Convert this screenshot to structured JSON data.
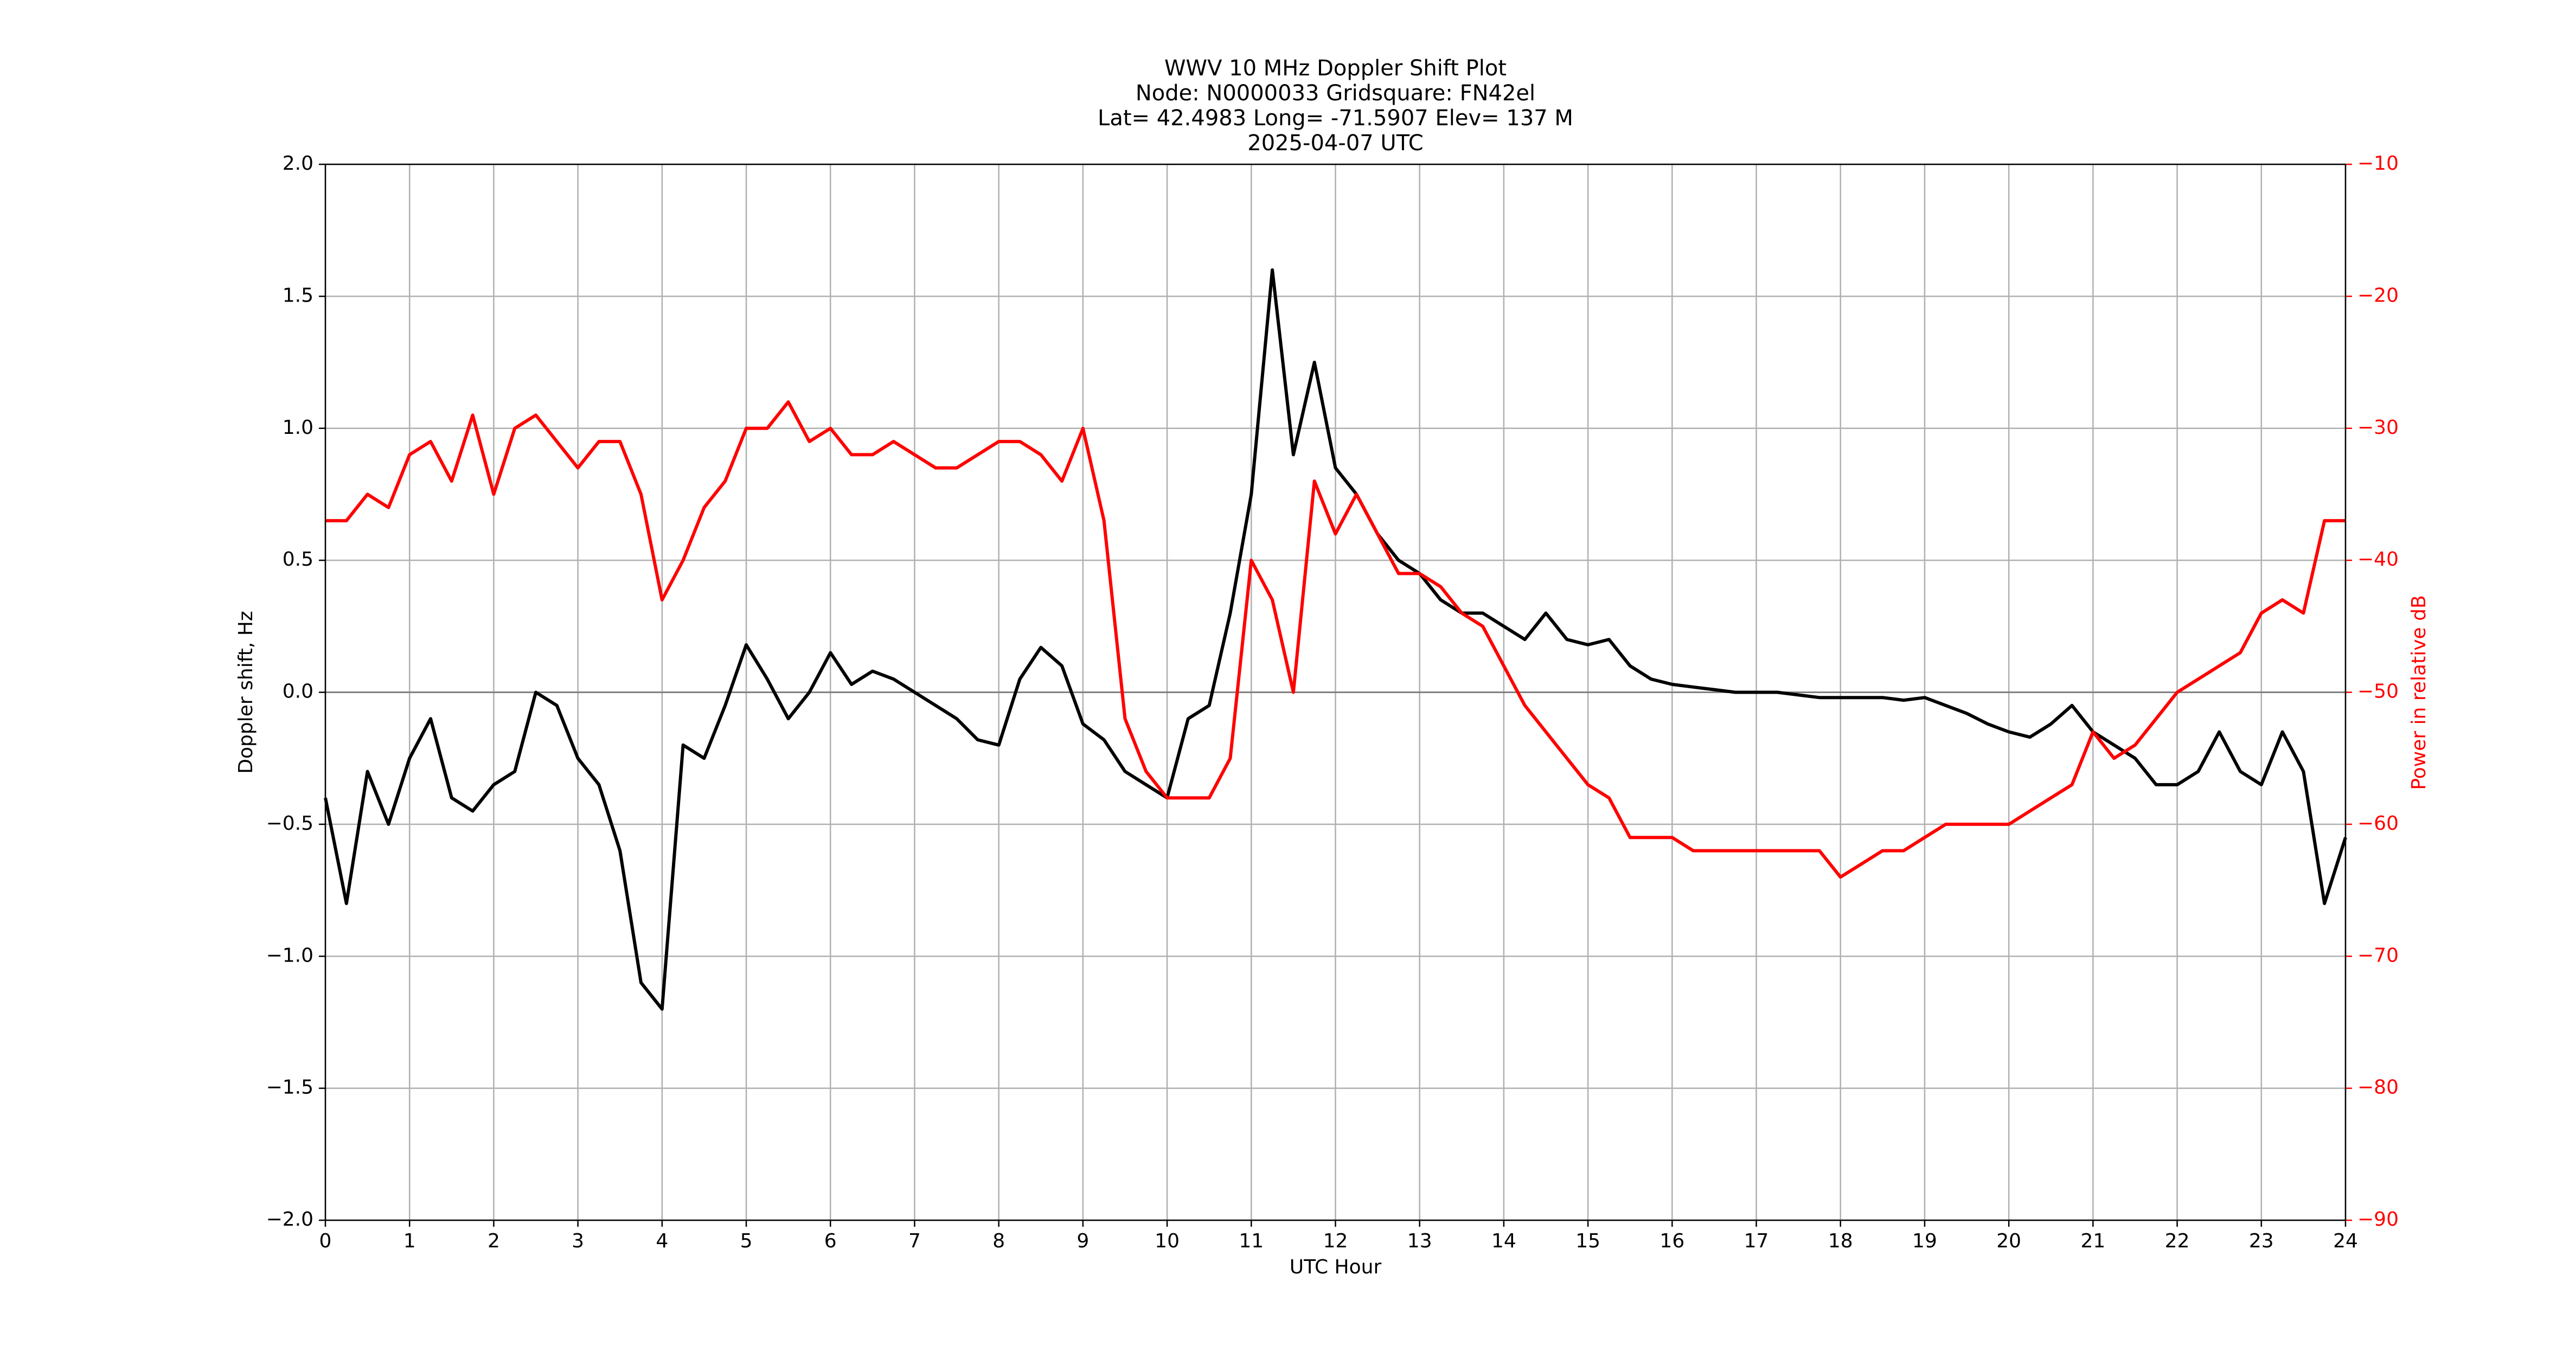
{
  "chart_data": {
    "type": "line",
    "title": [
      "WWV 10 MHz Doppler Shift Plot",
      "Node:  N0000033     Gridsquare:  FN42el",
      "Lat= 42.4983    Long= -71.5907    Elev= 137 M",
      "2025-04-07  UTC"
    ],
    "xlabel": "UTC Hour",
    "ylabel": "Doppler shift, Hz",
    "y2label": "Power in relative dB",
    "xlim": [
      0,
      24
    ],
    "xticks": [
      0,
      1,
      2,
      3,
      4,
      5,
      6,
      7,
      8,
      9,
      10,
      11,
      12,
      13,
      14,
      15,
      16,
      17,
      18,
      19,
      20,
      21,
      22,
      23,
      24
    ],
    "ylim": [
      -2,
      2
    ],
    "yticks": [
      {
        "value": -2,
        "label": "−2.0"
      },
      {
        "value": -1.5,
        "label": "−1.5"
      },
      {
        "value": -1,
        "label": "−1.0"
      },
      {
        "value": -0.5,
        "label": "−0.5"
      },
      {
        "value": 0,
        "label": "0.0"
      },
      {
        "value": 0.5,
        "label": "0.5"
      },
      {
        "value": 1,
        "label": "1.0"
      },
      {
        "value": 1.5,
        "label": "1.5"
      },
      {
        "value": 2,
        "label": "2.0"
      }
    ],
    "y2lim": [
      -90,
      -10
    ],
    "y2ticks": [
      {
        "value": -90,
        "label": "−90"
      },
      {
        "value": -80,
        "label": "−80"
      },
      {
        "value": -70,
        "label": "−70"
      },
      {
        "value": -60,
        "label": "−60"
      },
      {
        "value": -50,
        "label": "−50"
      },
      {
        "value": -40,
        "label": "−40"
      },
      {
        "value": -30,
        "label": "−30"
      },
      {
        "value": -20,
        "label": "−20"
      },
      {
        "value": -10,
        "label": "−10"
      }
    ],
    "grid": true,
    "x": [
      0,
      0.25,
      0.5,
      0.75,
      1,
      1.25,
      1.5,
      1.75,
      2,
      2.25,
      2.5,
      2.75,
      3,
      3.25,
      3.5,
      3.75,
      4,
      4.25,
      4.5,
      4.75,
      5,
      5.25,
      5.5,
      5.75,
      6,
      6.25,
      6.5,
      6.75,
      7,
      7.25,
      7.5,
      7.75,
      8,
      8.25,
      8.5,
      8.75,
      9,
      9.25,
      9.5,
      9.75,
      10,
      10.25,
      10.5,
      10.75,
      11,
      11.25,
      11.5,
      11.75,
      12,
      12.25,
      12.5,
      12.75,
      13,
      13.25,
      13.5,
      13.75,
      14,
      14.25,
      14.5,
      14.75,
      15,
      15.25,
      15.5,
      15.75,
      16,
      16.25,
      16.5,
      16.75,
      17,
      17.25,
      17.5,
      17.75,
      18,
      18.25,
      18.5,
      18.75,
      19,
      19.25,
      19.5,
      19.75,
      20,
      20.25,
      20.5,
      20.75,
      21,
      21.25,
      21.5,
      21.75,
      22,
      22.25,
      22.5,
      22.75,
      23,
      23.25,
      23.5,
      23.75,
      24
    ],
    "series": [
      {
        "color": "#000000",
        "values": [
          -0.4,
          -0.8,
          -0.3,
          -0.5,
          -0.25,
          -0.1,
          -0.4,
          -0.45,
          -0.35,
          -0.3,
          0,
          -0.05,
          -0.25,
          -0.35,
          -0.6,
          -1.1,
          -1.2,
          -0.2,
          -0.25,
          -0.05,
          0.18,
          0.05,
          -0.1,
          0,
          0.15,
          0.03,
          0.08,
          0.05,
          0,
          -0.05,
          -0.1,
          -0.18,
          -0.2,
          0.05,
          0.17,
          0.1,
          -0.12,
          -0.18,
          -0.3,
          -0.35,
          -0.4,
          -0.1,
          -0.05,
          0.3,
          0.75,
          1.6,
          0.9,
          1.25,
          0.85,
          0.75,
          0.6,
          0.5,
          0.45,
          0.35,
          0.3,
          0.3,
          0.25,
          0.2,
          0.3,
          0.2,
          0.18,
          0.2,
          0.1,
          0.05,
          0.03,
          0.02,
          0.01,
          0,
          0,
          0,
          -0.01,
          -0.02,
          -0.02,
          -0.02,
          -0.02,
          -0.03,
          -0.02,
          -0.05,
          -0.08,
          -0.12,
          -0.15,
          -0.17,
          -0.12,
          -0.05,
          -0.15,
          -0.2,
          -0.25,
          -0.35,
          -0.35,
          -0.3,
          -0.15,
          -0.3,
          -0.35,
          -0.15,
          -0.3,
          -0.8,
          -0.55
        ]
      },
      {
        "color": "#ff0000",
        "axis": "y2",
        "values": [
          -37,
          -37,
          -35,
          -36,
          -32,
          -31,
          -34,
          -29,
          -35,
          -30,
          -29,
          -31,
          -33,
          -31,
          -31,
          -35,
          -43,
          -40,
          -36,
          -34,
          -30,
          -30,
          -28,
          -31,
          -30,
          -32,
          -32,
          -31,
          -32,
          -33,
          -33,
          -32,
          -31,
          -31,
          -32,
          -34,
          -30,
          -37,
          -52,
          -56,
          -58,
          -58,
          -58,
          -55,
          -40,
          -43,
          -50,
          -34,
          -38,
          -35,
          -38,
          -41,
          -41,
          -42,
          -44,
          -45,
          -48,
          -51,
          -53,
          -55,
          -57,
          -58,
          -61,
          -61,
          -61,
          -62,
          -62,
          -62,
          -62,
          -62,
          -62,
          -62,
          -64,
          -63,
          -62,
          -62,
          -61,
          -60,
          -60,
          -60,
          -60,
          -59,
          -58,
          -57,
          -53,
          -55,
          -54,
          -52,
          -50,
          -49,
          -48,
          -47,
          -44,
          -43,
          -44,
          -37,
          -37
        ]
      }
    ]
  }
}
